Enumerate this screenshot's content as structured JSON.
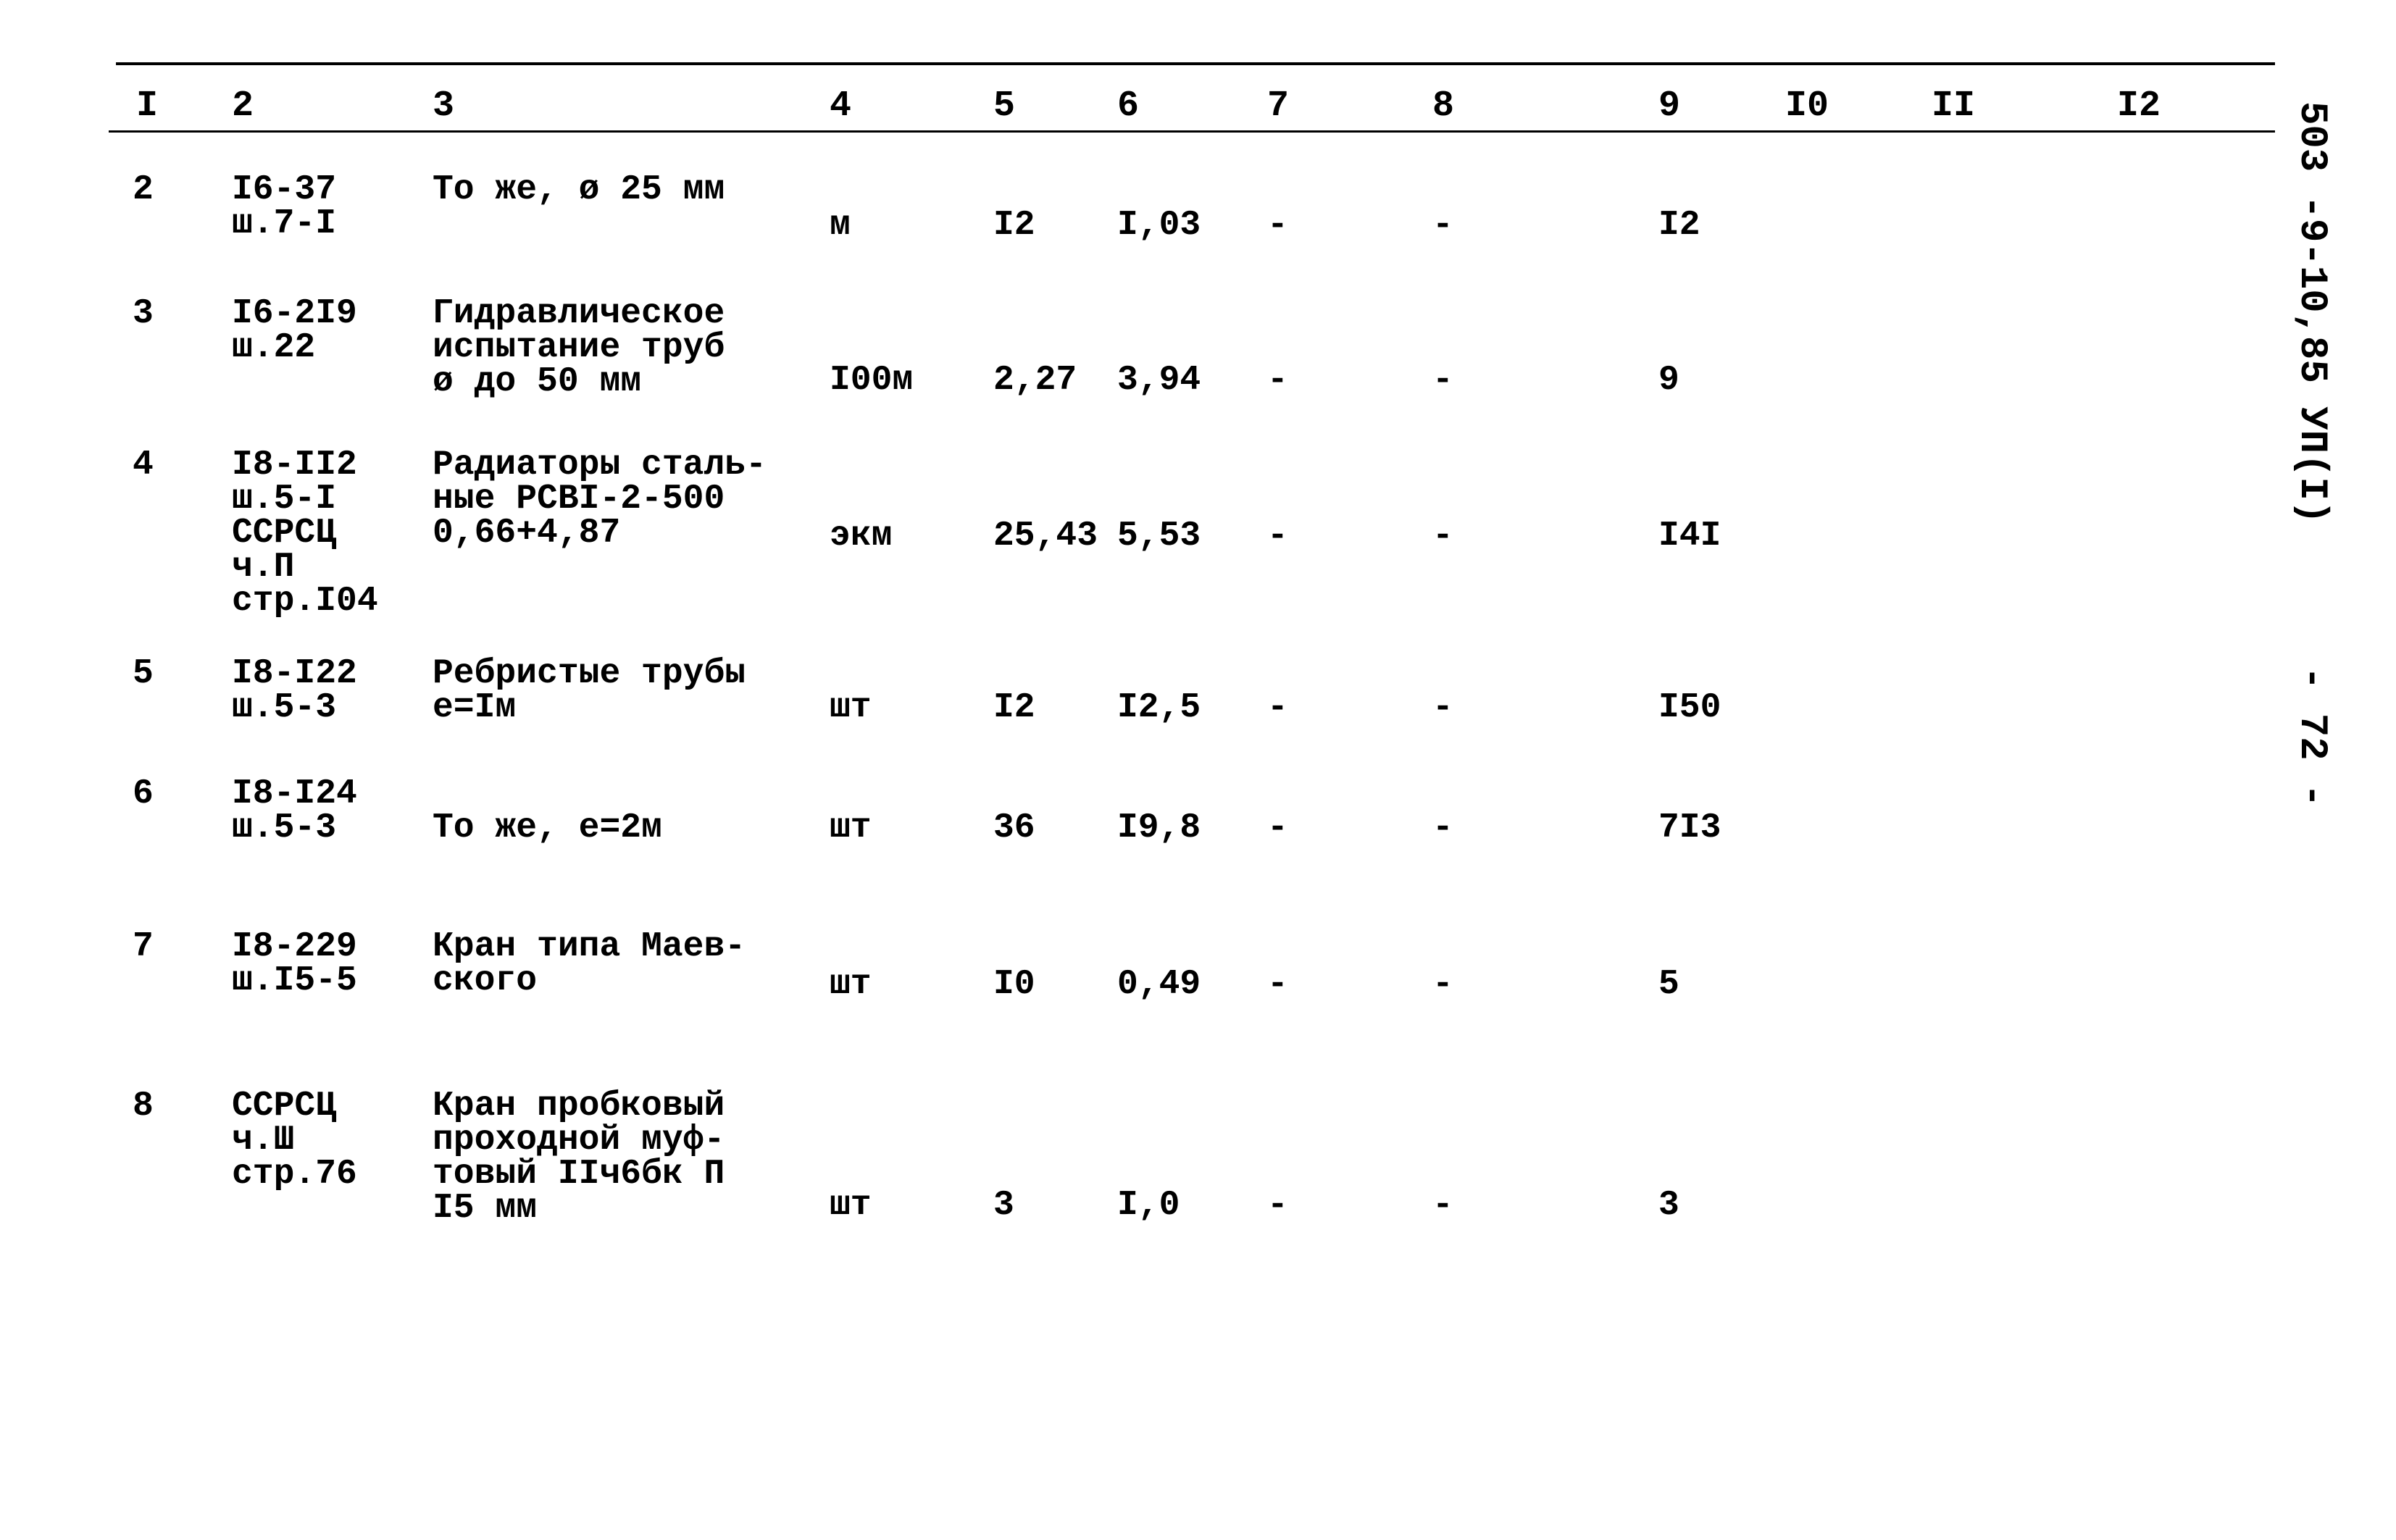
{
  "header": {
    "columns": [
      "I",
      "2",
      "3",
      "4",
      "5",
      "6",
      "7",
      "8",
      "9",
      "I0",
      "II",
      "I2"
    ]
  },
  "rows": [
    {
      "n": "2",
      "code": [
        "I6-37",
        "ш.7-I"
      ],
      "desc": [
        "То же, ø 25 мм"
      ],
      "unit": "м",
      "c5": "I2",
      "c6": "I,03",
      "c7": "-",
      "c8": "-",
      "c9": "I2"
    },
    {
      "n": "3",
      "code": [
        "I6-2I9",
        "ш.22"
      ],
      "desc": [
        "Гидравлическое",
        "испытание труб",
        "ø до 50 мм"
      ],
      "unit": "I00м",
      "c5": "2,27",
      "c6": "3,94",
      "c7": "-",
      "c8": "-",
      "c9": "9"
    },
    {
      "n": "4",
      "code": [
        "I8-II2",
        "ш.5-I",
        "ССРСЦ",
        "ч.П",
        "стр.I04"
      ],
      "desc": [
        "Радиаторы сталь-",
        "ные РСВI-2-500",
        "0,66+4,87"
      ],
      "unit": "экм",
      "c5": "25,43",
      "c6": "5,53",
      "c7": "-",
      "c8": "-",
      "c9": "I4I"
    },
    {
      "n": "5",
      "code": [
        "I8-I22",
        "ш.5-3"
      ],
      "desc": [
        "Ребристые трубы",
        "е=Iм"
      ],
      "unit": "шт",
      "c5": "I2",
      "c6": "I2,5",
      "c7": "-",
      "c8": "-",
      "c9": "I50"
    },
    {
      "n": "6",
      "code": [
        "I8-I24",
        "ш.5-3"
      ],
      "desc": [
        "",
        "То же, е=2м"
      ],
      "unit": "шт",
      "c5": "36",
      "c6": "I9,8",
      "c7": "-",
      "c8": "-",
      "c9": "7I3"
    },
    {
      "n": "7",
      "code": [
        "I8-229",
        "ш.I5-5"
      ],
      "desc": [
        "Кран типа Маев-",
        "ского"
      ],
      "unit": "шт",
      "c5": "I0",
      "c6": "0,49",
      "c7": "-",
      "c8": "-",
      "c9": "5"
    },
    {
      "n": "8",
      "code": [
        "ССРСЦ",
        "ч.Ш",
        "стр.76"
      ],
      "desc": [
        "Кран пробковый",
        "проходной муф-",
        "товый IIч6бк П",
        "I5 мм"
      ],
      "unit": "шт",
      "c5": "3",
      "c6": "I,0",
      "c7": "-",
      "c8": "-",
      "c9": "3"
    }
  ],
  "side": {
    "doc_code": "503 -9-10,85 УП(I)",
    "page": "- 72 -"
  }
}
